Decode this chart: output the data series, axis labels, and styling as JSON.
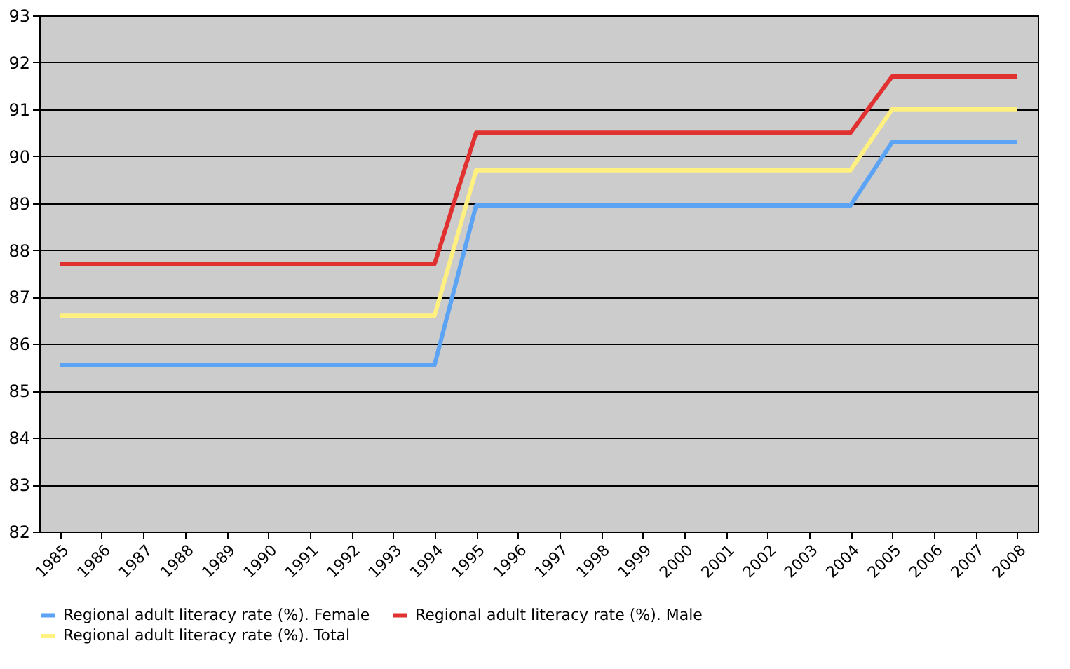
{
  "chart_data": {
    "type": "line",
    "categories": [
      "1985",
      "1986",
      "1987",
      "1988",
      "1989",
      "1990",
      "1991",
      "1992",
      "1993",
      "1994",
      "1995",
      "1996",
      "1997",
      "1998",
      "1999",
      "2000",
      "2001",
      "2002",
      "2003",
      "2004",
      "2005",
      "2006",
      "2007",
      "2008"
    ],
    "series": [
      {
        "name": "Regional adult literacy rate (%). Female",
        "color": "#5ba3f5",
        "values": [
          85.55,
          85.55,
          85.55,
          85.55,
          85.55,
          85.55,
          85.55,
          85.55,
          85.55,
          85.55,
          88.95,
          88.95,
          88.95,
          88.95,
          88.95,
          88.95,
          88.95,
          88.95,
          88.95,
          88.95,
          90.3,
          90.3,
          90.3,
          90.3
        ]
      },
      {
        "name": "Regional adult literacy rate (%). Male",
        "color": "#e03030",
        "values": [
          87.7,
          87.7,
          87.7,
          87.7,
          87.7,
          87.7,
          87.7,
          87.7,
          87.7,
          87.7,
          90.5,
          90.5,
          90.5,
          90.5,
          90.5,
          90.5,
          90.5,
          90.5,
          90.5,
          90.5,
          91.7,
          91.7,
          91.7,
          91.7
        ]
      },
      {
        "name": "Regional adult literacy rate (%). Total",
        "color": "#fff080",
        "values": [
          86.6,
          86.6,
          86.6,
          86.6,
          86.6,
          86.6,
          86.6,
          86.6,
          86.6,
          86.6,
          89.7,
          89.7,
          89.7,
          89.7,
          89.7,
          89.7,
          89.7,
          89.7,
          89.7,
          89.7,
          91.0,
          91.0,
          91.0,
          91.0
        ]
      }
    ],
    "ylim": [
      82,
      93
    ],
    "yticks": [
      82,
      83,
      84,
      85,
      86,
      87,
      88,
      89,
      90,
      91,
      92,
      93
    ],
    "grid": "y",
    "legend": "bottom",
    "marker": "none",
    "line_style": "solid"
  }
}
